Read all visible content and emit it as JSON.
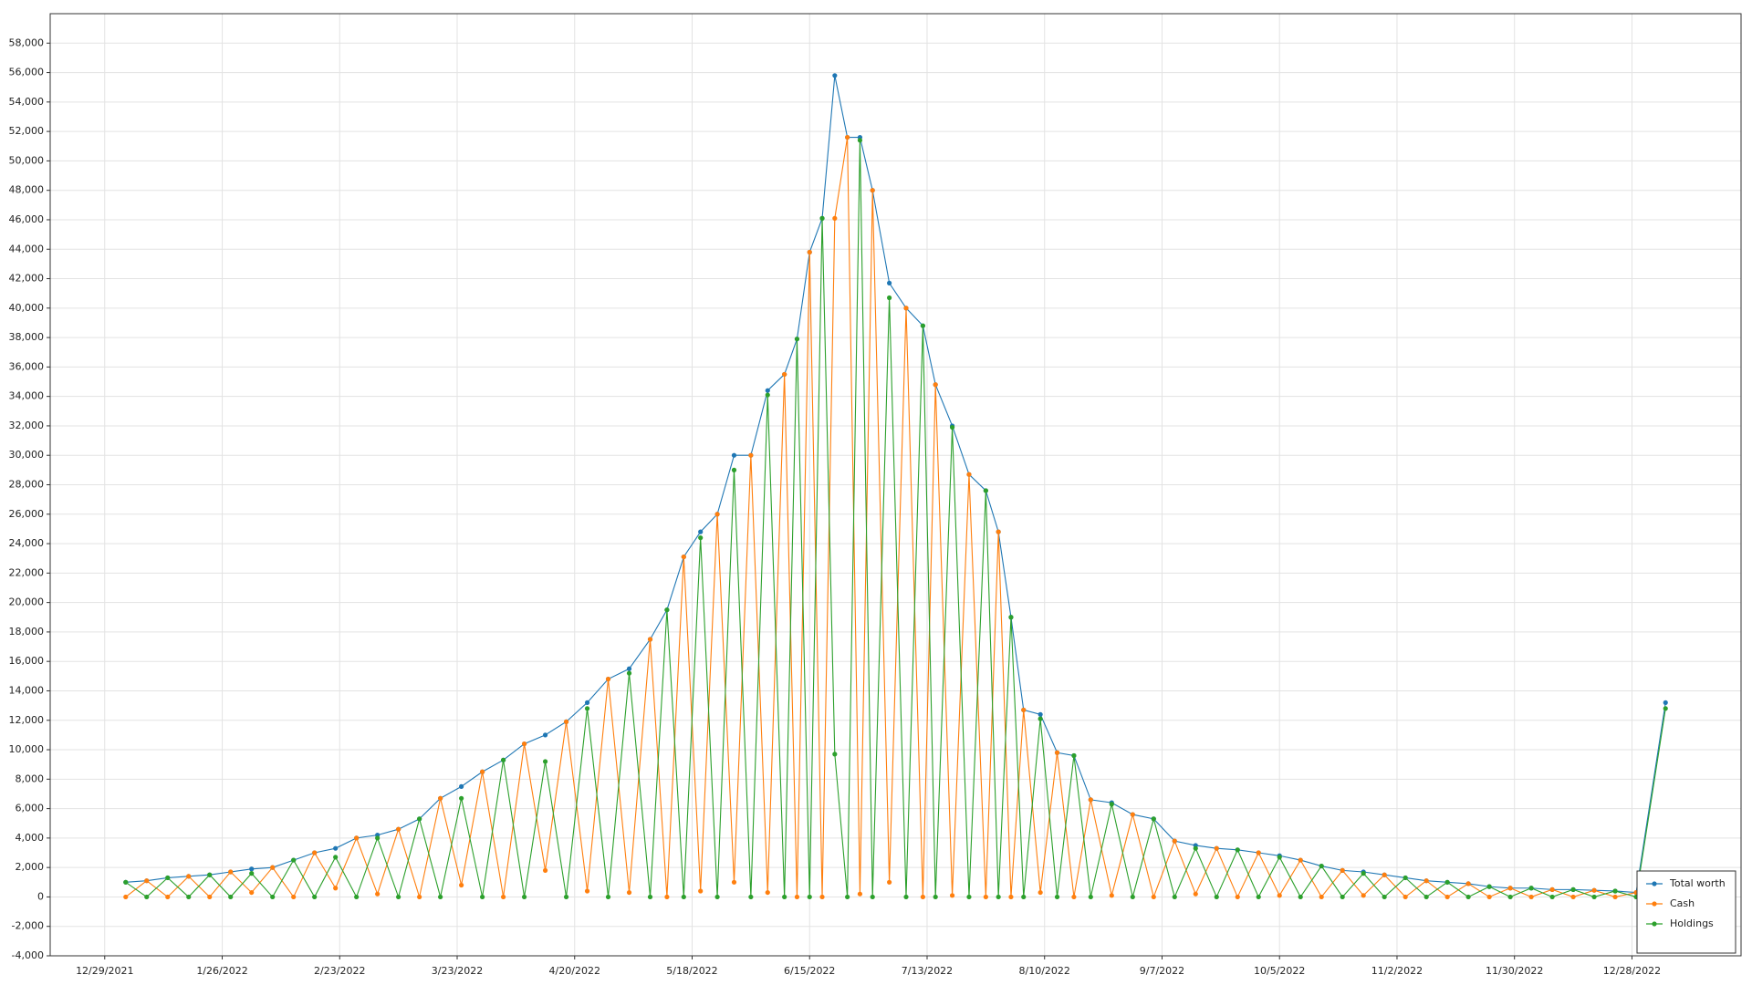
{
  "chart_data": {
    "type": "line",
    "x": [
      "2022-01-03",
      "2022-01-08",
      "2022-01-13",
      "2022-01-18",
      "2022-01-23",
      "2022-01-28",
      "2022-02-02",
      "2022-02-07",
      "2022-02-12",
      "2022-02-17",
      "2022-02-22",
      "2022-02-27",
      "2022-03-04",
      "2022-03-09",
      "2022-03-14",
      "2022-03-19",
      "2022-03-24",
      "2022-03-29",
      "2022-04-03",
      "2022-04-08",
      "2022-04-13",
      "2022-04-18",
      "2022-04-23",
      "2022-04-28",
      "2022-05-03",
      "2022-05-08",
      "2022-05-12",
      "2022-05-16",
      "2022-05-20",
      "2022-05-24",
      "2022-05-28",
      "2022-06-01",
      "2022-06-05",
      "2022-06-09",
      "2022-06-12",
      "2022-06-15",
      "2022-06-18",
      "2022-06-21",
      "2022-06-24",
      "2022-06-27",
      "2022-06-30",
      "2022-07-04",
      "2022-07-08",
      "2022-07-12",
      "2022-07-15",
      "2022-07-19",
      "2022-07-23",
      "2022-07-27",
      "2022-07-30",
      "2022-08-02",
      "2022-08-05",
      "2022-08-09",
      "2022-08-13",
      "2022-08-17",
      "2022-08-21",
      "2022-08-26",
      "2022-08-31",
      "2022-09-05",
      "2022-09-10",
      "2022-09-15",
      "2022-09-20",
      "2022-09-25",
      "2022-09-30",
      "2022-10-05",
      "2022-10-10",
      "2022-10-15",
      "2022-10-20",
      "2022-10-25",
      "2022-10-30",
      "2022-11-04",
      "2022-11-09",
      "2022-11-14",
      "2022-11-19",
      "2022-11-24",
      "2022-11-29",
      "2022-12-04",
      "2022-12-09",
      "2022-12-14",
      "2022-12-19",
      "2022-12-24",
      "2022-12-29",
      "2023-01-05"
    ],
    "series": [
      {
        "name": "Total worth",
        "color": "#1f77b4",
        "values": [
          1000,
          1100,
          1300,
          1400,
          1500,
          1700,
          1900,
          2000,
          2500,
          3000,
          3300,
          4000,
          4200,
          4600,
          5300,
          6700,
          7500,
          8500,
          9300,
          10400,
          11000,
          11900,
          13200,
          14800,
          15500,
          17500,
          19500,
          23100,
          24800,
          26000,
          30000,
          30000,
          34400,
          35500,
          37900,
          43800,
          46100,
          55800,
          51600,
          51600,
          48000,
          41700,
          40000,
          38800,
          34800,
          32000,
          28700,
          27600,
          24800,
          19000,
          12700,
          12400,
          9800,
          9600,
          6600,
          6400,
          5600,
          5300,
          3800,
          3500,
          3300,
          3200,
          3000,
          2800,
          2500,
          2100,
          1800,
          1700,
          1500,
          1300,
          1100,
          1000,
          900,
          700,
          600,
          600,
          500,
          500,
          450,
          400,
          300,
          13200
        ]
      },
      {
        "name": "Cash",
        "color": "#ff7f0e",
        "values": [
          0,
          1100,
          0,
          1400,
          0,
          1700,
          300,
          2000,
          0,
          3000,
          600,
          4000,
          200,
          4600,
          0,
          6700,
          800,
          8500,
          0,
          10400,
          1800,
          11900,
          400,
          14800,
          300,
          17500,
          0,
          23100,
          400,
          26000,
          1000,
          30000,
          300,
          35500,
          0,
          43800,
          0,
          46100,
          51600,
          200,
          48000,
          1000,
          40000,
          0,
          34800,
          100,
          28700,
          0,
          24800,
          0,
          12700,
          300,
          9800,
          0,
          6600,
          100,
          5600,
          0,
          3800,
          200,
          3300,
          0,
          3000,
          100,
          2500,
          0,
          1800,
          100,
          1500,
          0,
          1100,
          0,
          900,
          0,
          600,
          0,
          500,
          0,
          450,
          0,
          300,
          400
        ]
      },
      {
        "name": "Holdings",
        "color": "#2ca02c",
        "values": [
          1000,
          0,
          1300,
          0,
          1500,
          0,
          1600,
          0,
          2500,
          0,
          2700,
          0,
          4000,
          0,
          5300,
          0,
          6700,
          0,
          9300,
          0,
          9200,
          0,
          12800,
          0,
          15200,
          0,
          19500,
          0,
          24400,
          0,
          29000,
          0,
          34100,
          0,
          37900,
          0,
          46100,
          9700,
          0,
          51400,
          0,
          40700,
          0,
          38800,
          0,
          31900,
          0,
          27600,
          0,
          19000,
          0,
          12100,
          0,
          9600,
          0,
          6300,
          0,
          5300,
          0,
          3300,
          0,
          3200,
          0,
          2700,
          0,
          2100,
          0,
          1600,
          0,
          1300,
          0,
          1000,
          0,
          700,
          0,
          600,
          0,
          500,
          0,
          400,
          0,
          12800
        ]
      }
    ],
    "xlim": [
      "2021-12-16",
      "2023-01-23"
    ],
    "xticks": [
      {
        "value": "2021-12-29",
        "label": "12/29/2021"
      },
      {
        "value": "2022-01-26",
        "label": "1/26/2022"
      },
      {
        "value": "2022-02-23",
        "label": "2/23/2022"
      },
      {
        "value": "2022-03-23",
        "label": "3/23/2022"
      },
      {
        "value": "2022-04-20",
        "label": "4/20/2022"
      },
      {
        "value": "2022-05-18",
        "label": "5/18/2022"
      },
      {
        "value": "2022-06-15",
        "label": "6/15/2022"
      },
      {
        "value": "2022-07-13",
        "label": "7/13/2022"
      },
      {
        "value": "2022-08-10",
        "label": "8/10/2022"
      },
      {
        "value": "2022-09-07",
        "label": "9/7/2022"
      },
      {
        "value": "2022-10-05",
        "label": "10/5/2022"
      },
      {
        "value": "2022-11-02",
        "label": "11/2/2022"
      },
      {
        "value": "2022-11-30",
        "label": "11/30/2022"
      },
      {
        "value": "2022-12-28",
        "label": "12/28/2022"
      }
    ],
    "ylim": [
      -4000,
      60000
    ],
    "yticks": [
      {
        "value": -4000,
        "label": "-4,000"
      },
      {
        "value": -2000,
        "label": "-2,000"
      },
      0,
      {
        "value": 2000,
        "label": "2,000"
      },
      {
        "value": 4000,
        "label": "4,000"
      },
      {
        "value": 6000,
        "label": "6,000"
      },
      {
        "value": 8000,
        "label": "8,000"
      },
      {
        "value": 10000,
        "label": "10,000"
      },
      {
        "value": 12000,
        "label": "12,000"
      },
      {
        "value": 14000,
        "label": "14,000"
      },
      {
        "value": 16000,
        "label": "16,000"
      },
      {
        "value": 18000,
        "label": "18,000"
      },
      {
        "value": 20000,
        "label": "20,000"
      },
      {
        "value": 22000,
        "label": "22,000"
      },
      {
        "value": 24000,
        "label": "24,000"
      },
      {
        "value": 26000,
        "label": "26,000"
      },
      {
        "value": 28000,
        "label": "28,000"
      },
      {
        "value": 30000,
        "label": "30,000"
      },
      {
        "value": 32000,
        "label": "32,000"
      },
      {
        "value": 34000,
        "label": "34,000"
      },
      {
        "value": 36000,
        "label": "36,000"
      },
      {
        "value": 38000,
        "label": "38,000"
      },
      {
        "value": 40000,
        "label": "40,000"
      },
      {
        "value": 42000,
        "label": "42,000"
      },
      {
        "value": 44000,
        "label": "44,000"
      },
      {
        "value": 46000,
        "label": "46,000"
      },
      {
        "value": 48000,
        "label": "48,000"
      },
      {
        "value": 50000,
        "label": "50,000"
      },
      {
        "value": 52000,
        "label": "52,000"
      },
      {
        "value": 54000,
        "label": "54,000"
      },
      {
        "value": 56000,
        "label": "56,000"
      },
      {
        "value": 58000,
        "label": "58,000"
      }
    ],
    "grid": true,
    "legend": "lower-right"
  }
}
